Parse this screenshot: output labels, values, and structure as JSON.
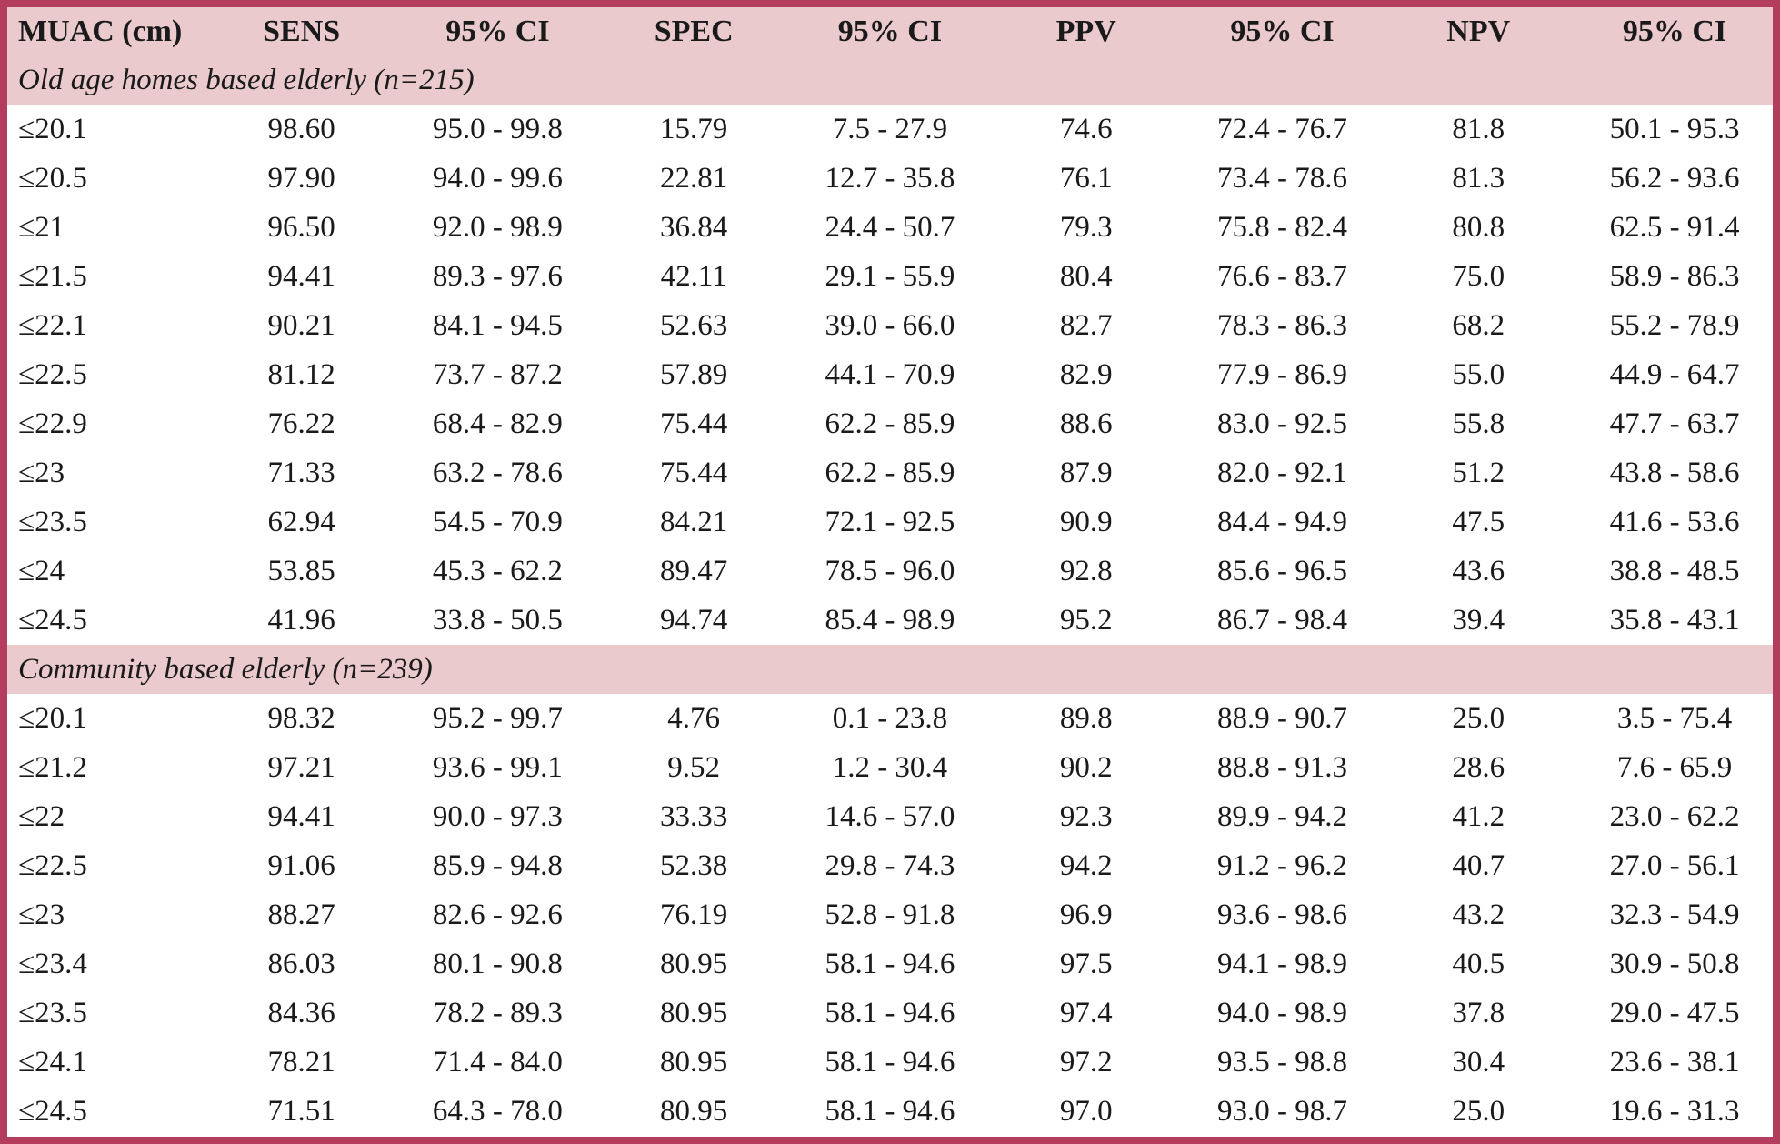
{
  "colors": {
    "frame_border": "#b43c5d",
    "band_background": "#ebcacd",
    "row_background": "#ffffff",
    "text": "#1a1a1a"
  },
  "table": {
    "columns": [
      "MUAC (cm)",
      "SENS",
      "95% CI",
      "SPEC",
      "95% CI",
      "PPV",
      "95% CI",
      "NPV",
      "95% CI"
    ],
    "sections": [
      {
        "title": "Old age homes based elderly (n=215)",
        "rows": [
          [
            "≤20.1",
            "98.60",
            "95.0 - 99.8",
            "15.79",
            "7.5 - 27.9",
            "74.6",
            "72.4 - 76.7",
            "81.8",
            "50.1 - 95.3"
          ],
          [
            "≤20.5",
            "97.90",
            "94.0 - 99.6",
            "22.81",
            "12.7 - 35.8",
            "76.1",
            "73.4 - 78.6",
            "81.3",
            "56.2 - 93.6"
          ],
          [
            "≤21",
            "96.50",
            "92.0 - 98.9",
            "36.84",
            "24.4 - 50.7",
            "79.3",
            "75.8 - 82.4",
            "80.8",
            "62.5 - 91.4"
          ],
          [
            "≤21.5",
            "94.41",
            "89.3 - 97.6",
            "42.11",
            "29.1 - 55.9",
            "80.4",
            "76.6 - 83.7",
            "75.0",
            "58.9 - 86.3"
          ],
          [
            "≤22.1",
            "90.21",
            "84.1 - 94.5",
            "52.63",
            "39.0 - 66.0",
            "82.7",
            "78.3 - 86.3",
            "68.2",
            "55.2 - 78.9"
          ],
          [
            "≤22.5",
            "81.12",
            "73.7 - 87.2",
            "57.89",
            "44.1 - 70.9",
            "82.9",
            "77.9 - 86.9",
            "55.0",
            "44.9 - 64.7"
          ],
          [
            "≤22.9",
            "76.22",
            "68.4 - 82.9",
            "75.44",
            "62.2 - 85.9",
            "88.6",
            "83.0 - 92.5",
            "55.8",
            "47.7 - 63.7"
          ],
          [
            "≤23",
            "71.33",
            "63.2 - 78.6",
            "75.44",
            "62.2 - 85.9",
            "87.9",
            "82.0 - 92.1",
            "51.2",
            "43.8 - 58.6"
          ],
          [
            "≤23.5",
            "62.94",
            "54.5 - 70.9",
            "84.21",
            "72.1 - 92.5",
            "90.9",
            "84.4 - 94.9",
            "47.5",
            "41.6 - 53.6"
          ],
          [
            "≤24",
            "53.85",
            "45.3 - 62.2",
            "89.47",
            "78.5 - 96.0",
            "92.8",
            "85.6 - 96.5",
            "43.6",
            "38.8 - 48.5"
          ],
          [
            "≤24.5",
            "41.96",
            "33.8 - 50.5",
            "94.74",
            "85.4 - 98.9",
            "95.2",
            "86.7 - 98.4",
            "39.4",
            "35.8 - 43.1"
          ]
        ]
      },
      {
        "title": "Community based elderly (n=239)",
        "rows": [
          [
            "≤20.1",
            "98.32",
            "95.2 - 99.7",
            "4.76",
            "0.1 - 23.8",
            "89.8",
            "88.9 - 90.7",
            "25.0",
            "3.5 - 75.4"
          ],
          [
            "≤21.2",
            "97.21",
            "93.6 - 99.1",
            "9.52",
            "1.2 - 30.4",
            "90.2",
            "88.8 - 91.3",
            "28.6",
            "7.6 - 65.9"
          ],
          [
            "≤22",
            "94.41",
            "90.0 - 97.3",
            "33.33",
            "14.6 - 57.0",
            "92.3",
            "89.9 - 94.2",
            "41.2",
            "23.0 - 62.2"
          ],
          [
            "≤22.5",
            "91.06",
            "85.9 - 94.8",
            "52.38",
            "29.8 - 74.3",
            "94.2",
            "91.2 - 96.2",
            "40.7",
            "27.0 - 56.1"
          ],
          [
            "≤23",
            "88.27",
            "82.6 - 92.6",
            "76.19",
            "52.8 - 91.8",
            "96.9",
            "93.6 - 98.6",
            "43.2",
            "32.3 - 54.9"
          ],
          [
            "≤23.4",
            "86.03",
            "80.1 - 90.8",
            "80.95",
            "58.1 - 94.6",
            "97.5",
            "94.1 - 98.9",
            "40.5",
            "30.9 - 50.8"
          ],
          [
            "≤23.5",
            "84.36",
            "78.2 - 89.3",
            "80.95",
            "58.1 - 94.6",
            "97.4",
            "94.0 - 98.9",
            "37.8",
            "29.0 - 47.5"
          ],
          [
            "≤24.1",
            "78.21",
            "71.4 - 84.0",
            "80.95",
            "58.1 - 94.6",
            "97.2",
            "93.5 - 98.8",
            "30.4",
            "23.6 - 38.1"
          ],
          [
            "≤24.5",
            "71.51",
            "64.3 - 78.0",
            "80.95",
            "58.1 - 94.6",
            "97.0",
            "93.0 - 98.7",
            "25.0",
            "19.6 - 31.3"
          ]
        ]
      }
    ]
  }
}
